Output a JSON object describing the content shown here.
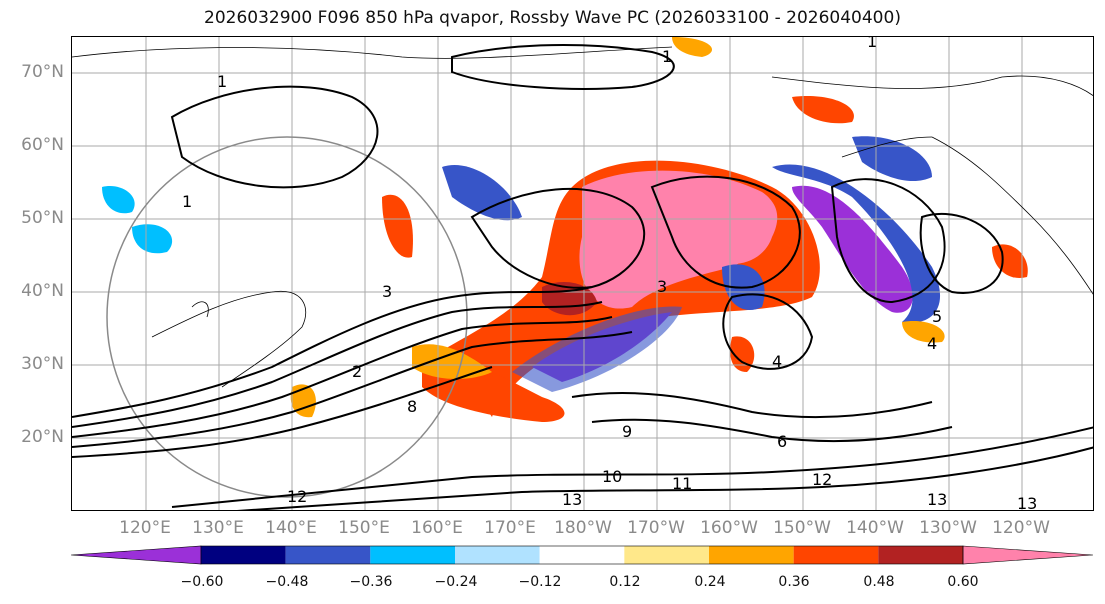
{
  "title": "2026032900 F096 850 hPa qvapor, Rossby Wave PC (2026033100 - 2026040400)",
  "lat_labels": [
    "70°N",
    "60°N",
    "50°N",
    "40°N",
    "30°N",
    "20°N"
  ],
  "lon_labels": [
    "120°E",
    "130°E",
    "140°E",
    "150°E",
    "160°E",
    "170°E",
    "180°W",
    "170°W",
    "160°W",
    "150°W",
    "140°W",
    "130°W",
    "120°W"
  ],
  "colorbar": {
    "ticks": [
      "−0.60",
      "−0.48",
      "−0.36",
      "−0.24",
      "−0.12",
      "0.12",
      "0.24",
      "0.36",
      "0.48",
      "0.60"
    ],
    "colors": [
      "#9b30d8",
      "#000080",
      "#3755c8",
      "#00bfff",
      "#b0e2ff",
      "#ffffff",
      "#ffe88a",
      "#ffa500",
      "#ff4500",
      "#b22222",
      "#ff82ab"
    ]
  },
  "contour_labels": [
    "1",
    "1",
    "1",
    "1",
    "2",
    "3",
    "3",
    "4",
    "4",
    "5",
    "6",
    "8",
    "9",
    "10",
    "11",
    "12",
    "12",
    "13",
    "13",
    "13"
  ]
}
